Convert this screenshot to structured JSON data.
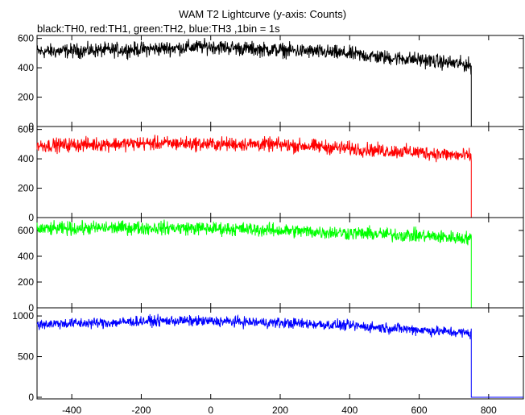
{
  "title": "WAM T2 Lightcurve (y-axis: Counts)",
  "subtitle": "black:TH0, red:TH1, green:TH2, blue:TH3 ,1bin = 1s",
  "chart_data": {
    "type": "line",
    "title": "WAM T2 Lightcurve (y-axis: Counts)",
    "bin_size_s": 1,
    "xlim": [
      -500,
      900
    ],
    "x_ticks": [
      -400,
      -200,
      0,
      200,
      400,
      600,
      800
    ],
    "data_end_x": 750,
    "panels": [
      {
        "name": "TH0",
        "color": "#000000",
        "ylim": [
          0,
          620
        ],
        "y_ticks": [
          0,
          200,
          400,
          600
        ],
        "x": [
          -500,
          -400,
          -300,
          -200,
          -100,
          0,
          100,
          200,
          300,
          400,
          500,
          600,
          700,
          740,
          750,
          751,
          800,
          900
        ],
        "values": [
          510,
          515,
          520,
          525,
          535,
          545,
          530,
          520,
          510,
          495,
          470,
          455,
          430,
          420,
          410,
          0,
          0,
          0
        ]
      },
      {
        "name": "TH1",
        "color": "#ff0000",
        "ylim": [
          0,
          620
        ],
        "y_ticks": [
          0,
          200,
          400,
          600
        ],
        "x": [
          -500,
          -400,
          -300,
          -200,
          -100,
          0,
          100,
          200,
          300,
          400,
          500,
          600,
          700,
          740,
          750,
          751,
          800,
          900
        ],
        "values": [
          490,
          495,
          500,
          505,
          505,
          500,
          500,
          495,
          485,
          470,
          455,
          445,
          425,
          420,
          415,
          0,
          0,
          0
        ]
      },
      {
        "name": "TH2",
        "color": "#00ff00",
        "ylim": [
          0,
          700
        ],
        "y_ticks": [
          0,
          200,
          400,
          600
        ],
        "x": [
          -500,
          -400,
          -300,
          -200,
          -100,
          0,
          100,
          200,
          300,
          400,
          500,
          600,
          700,
          740,
          750,
          751,
          800,
          900
        ],
        "values": [
          610,
          615,
          620,
          620,
          620,
          615,
          610,
          600,
          590,
          580,
          570,
          560,
          545,
          540,
          535,
          0,
          0,
          0
        ]
      },
      {
        "name": "TH3",
        "color": "#0000ff",
        "ylim": [
          -20,
          1100
        ],
        "y_ticks": [
          0,
          500,
          1000
        ],
        "x": [
          -500,
          -400,
          -300,
          -200,
          -100,
          0,
          100,
          200,
          300,
          400,
          500,
          600,
          700,
          740,
          750,
          751,
          800,
          900
        ],
        "values": [
          900,
          910,
          915,
          935,
          940,
          935,
          925,
          915,
          900,
          880,
          855,
          830,
          800,
          790,
          780,
          0,
          0,
          0
        ]
      }
    ]
  }
}
